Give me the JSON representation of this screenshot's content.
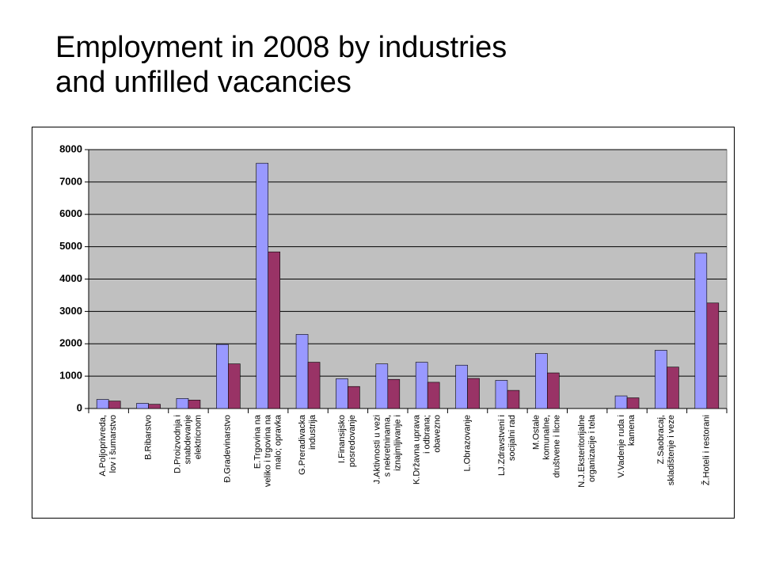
{
  "chart_data": {
    "type": "bar",
    "title": "Employment in 2008 by industries\nand unfilled vacancies",
    "categories": [
      "A.Poljoprivreda,\nlov i šumarstvo",
      "B.Ribarstvo",
      "D.Proizvodnja i\nsnabdevanje\nelektricnom",
      "Ð.Gradevinarstvo",
      "E.Trgovina na\nveliko i trgovina na\nmalo; opravka",
      "G.Preradivacka\nindustrija",
      "I.Finansijsko\nposredovanje",
      "J.Aktivnosti u vezi\ns nekretninama,\niznajmljivanje i",
      "K.Državna uprava\ni odbrana;\nobavezno",
      "L.Obrazovanje",
      "LJ.Zdravstveni i\nsocijalni rad",
      "M.Ostale\nkomunalne,\ndruštvene i licne",
      "N.J.Eksteritorijalne\norganizacije i tela",
      "V.Vadenje ruda i\nkamena",
      "Z.Saobracaj,\nskladištenje i veze",
      "Ž.Hoteli i restorani"
    ],
    "series": [
      {
        "color": "#9999ff",
        "values": [
          280,
          160,
          310,
          1980,
          7580,
          2290,
          920,
          1380,
          1430,
          1340,
          870,
          1700,
          0,
          390,
          1800,
          4800
        ]
      },
      {
        "color": "#993366",
        "values": [
          230,
          130,
          260,
          1380,
          4840,
          1430,
          680,
          900,
          810,
          930,
          560,
          1100,
          0,
          330,
          1280,
          3260
        ]
      }
    ],
    "ylim": [
      0,
      8000
    ],
    "yticks": [
      0,
      1000,
      2000,
      3000,
      4000,
      5000,
      6000,
      7000,
      8000
    ],
    "grid": true
  }
}
